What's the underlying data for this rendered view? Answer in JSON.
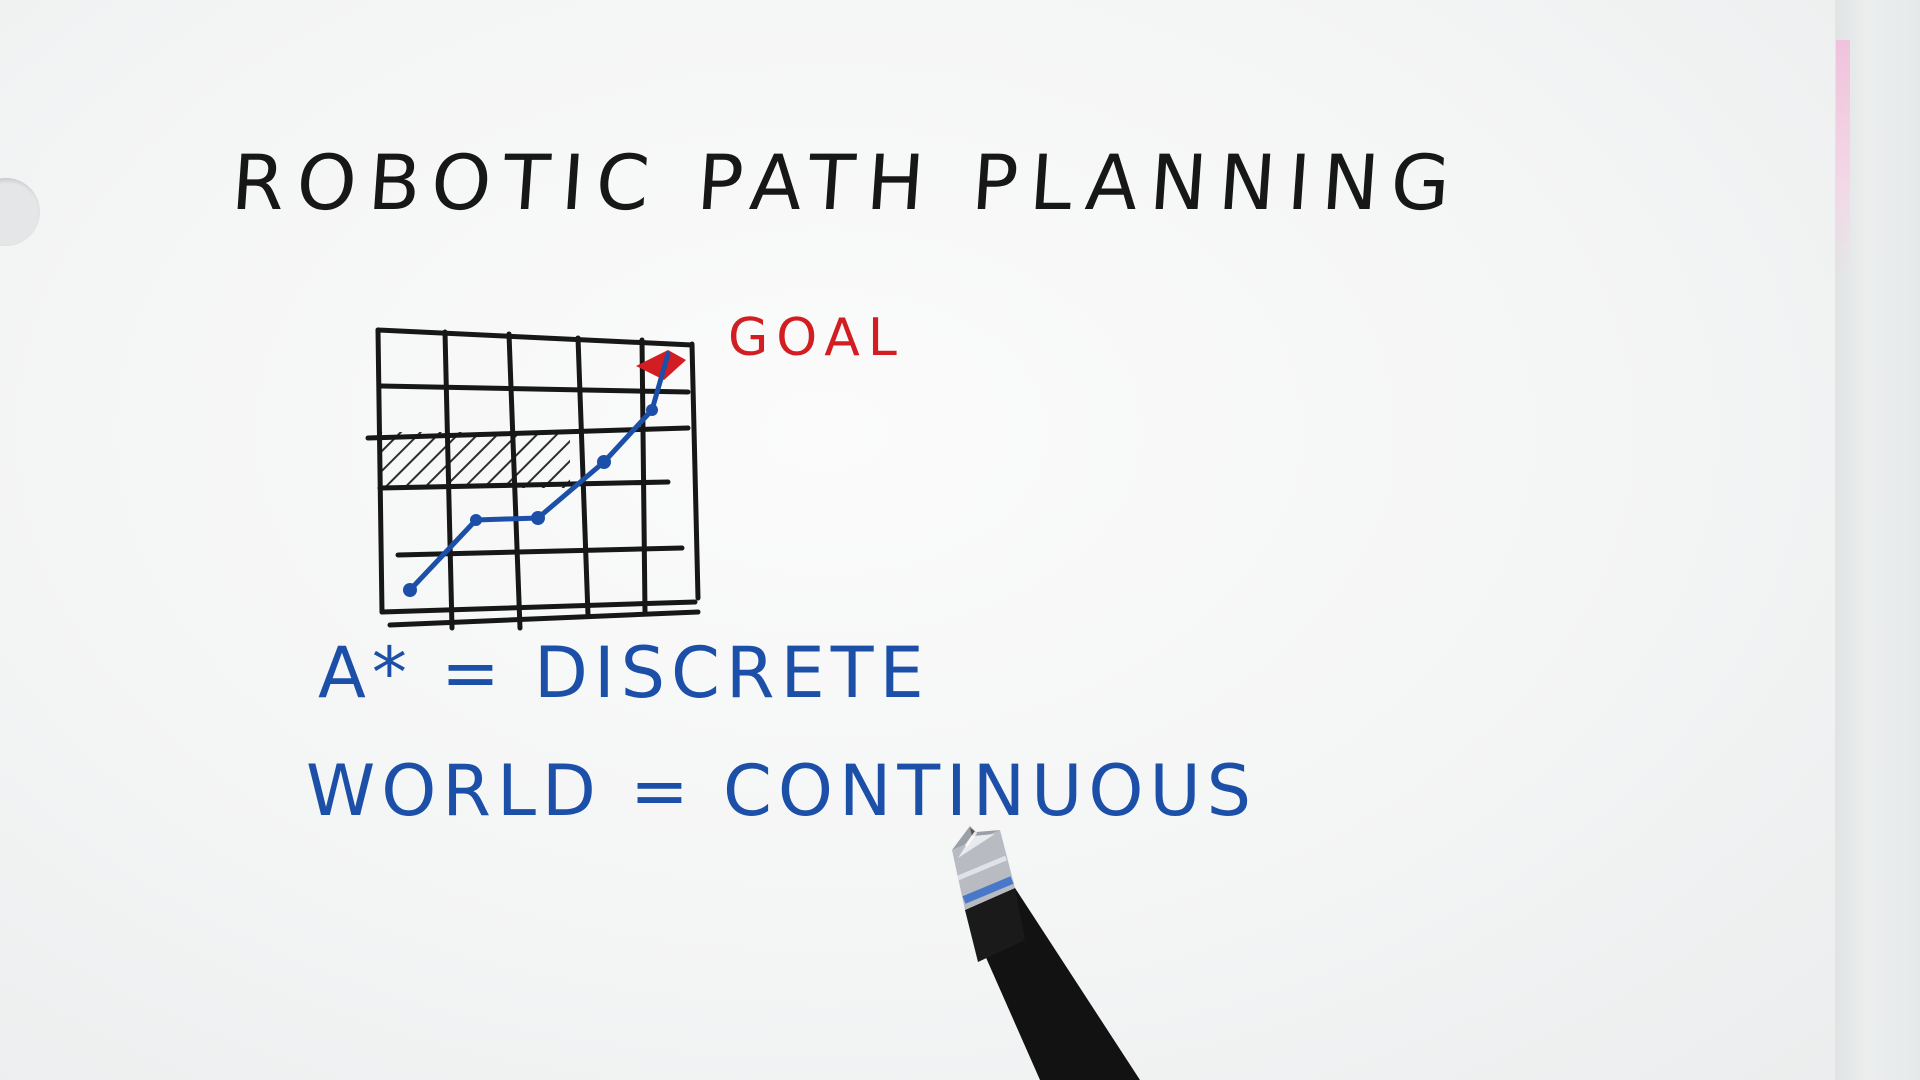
{
  "scene": {
    "title": "ROBOTIC PATH PLANNING",
    "goal_label": "GOAL",
    "line1": "A* = DISCRETE",
    "line2": "WORLD = CONTINUOUS"
  },
  "colors": {
    "ink_black": "#171717",
    "ink_blue": "#1b4fa8",
    "ink_red": "#d21d22",
    "paper": "#f7f7f7"
  },
  "icons": {
    "pen": "pen-icon"
  }
}
